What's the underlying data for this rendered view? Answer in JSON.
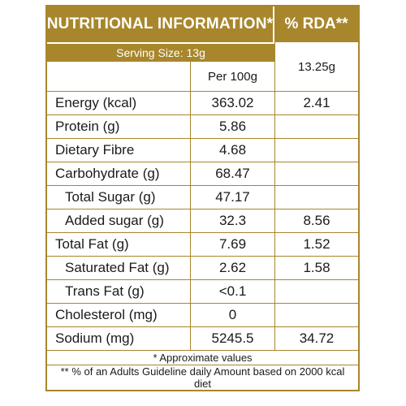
{
  "header": {
    "title": "NUTRITIONAL INFORMATION*",
    "rda_title": "% RDA**"
  },
  "serving_size": "Serving Size:  13g",
  "rda_serving": "13.25g",
  "per_100g_label": "Per  100g",
  "rows": [
    {
      "nutrient": "Energy (kcal)",
      "per100": "363.02",
      "rda": "2.41"
    },
    {
      "nutrient": "Protein (g)",
      "per100": "5.86",
      "rda": ""
    },
    {
      "nutrient": "Dietary Fibre",
      "per100": "4.68",
      "rda": ""
    },
    {
      "nutrient": "Carbohydrate (g)",
      "per100": "68.47",
      "rda": ""
    },
    {
      "nutrient": "Total Sugar (g)",
      "per100": "47.17",
      "rda": ""
    },
    {
      "nutrient": "Added sugar (g)",
      "per100": "32.3",
      "rda": "8.56"
    },
    {
      "nutrient": "Total Fat (g)",
      "per100": "7.69",
      "rda": "1.52"
    },
    {
      "nutrient": "Saturated Fat (g)",
      "per100": "2.62",
      "rda": "1.58"
    },
    {
      "nutrient": "Trans Fat (g)",
      "per100": "<0.1",
      "rda": ""
    },
    {
      "nutrient": "Cholesterol (mg)",
      "per100": "0",
      "rda": ""
    },
    {
      "nutrient": "Sodium (mg)",
      "per100": "5245.5",
      "rda": "34.72"
    }
  ],
  "footnote_1": "* Approximate values",
  "footnote_2": "** % of an Adults Guideline daily Amount based on 2000 kcal diet",
  "colors": {
    "accent": "#a8862c"
  }
}
